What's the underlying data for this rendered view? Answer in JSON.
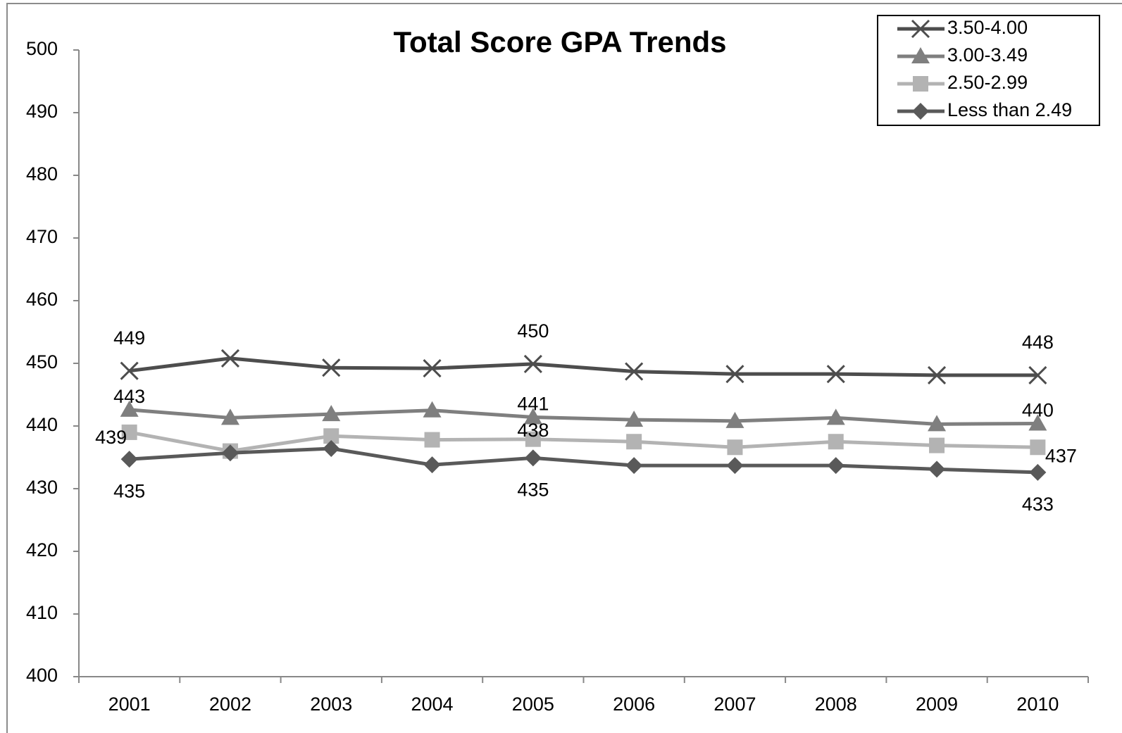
{
  "chart_data": {
    "type": "line",
    "title": "Total Score GPA Trends",
    "categories": [
      "2001",
      "2002",
      "2003",
      "2004",
      "2005",
      "2006",
      "2007",
      "2008",
      "2009",
      "2010"
    ],
    "ylim": [
      400,
      500
    ],
    "yticks": [
      400,
      410,
      420,
      430,
      440,
      450,
      460,
      470,
      480,
      490,
      500
    ],
    "legend": "top-right",
    "series": [
      {
        "name": "3.50-4.00",
        "color": "#4d4d4d",
        "marker": "x",
        "values": [
          448.8,
          450.8,
          449.3,
          449.2,
          449.9,
          448.7,
          448.3,
          448.3,
          448.1,
          448.1
        ],
        "value_labels": [
          "449",
          null,
          null,
          null,
          "450",
          null,
          null,
          null,
          null,
          "448"
        ]
      },
      {
        "name": "3.00-3.49",
        "color": "#7f7f7f",
        "marker": "triangle",
        "values": [
          442.6,
          441.3,
          441.9,
          442.5,
          441.4,
          441.0,
          440.8,
          441.3,
          440.3,
          440.4
        ],
        "value_labels": [
          "443",
          null,
          null,
          null,
          "441",
          null,
          null,
          null,
          null,
          "440"
        ]
      },
      {
        "name": "2.50-2.99",
        "color": "#b3b3b3",
        "marker": "square",
        "values": [
          439.0,
          436.0,
          438.4,
          437.8,
          437.9,
          437.5,
          436.6,
          437.5,
          436.9,
          436.6
        ],
        "value_labels": [
          "439",
          null,
          null,
          null,
          "438",
          null,
          null,
          null,
          null,
          "437"
        ]
      },
      {
        "name": "Less than 2.49",
        "color": "#595959",
        "marker": "diamond",
        "values": [
          434.7,
          435.7,
          436.4,
          433.8,
          434.9,
          433.7,
          433.7,
          433.7,
          433.1,
          432.6
        ],
        "value_labels": [
          "435",
          null,
          null,
          null,
          "435",
          null,
          null,
          null,
          null,
          "433"
        ]
      }
    ]
  }
}
